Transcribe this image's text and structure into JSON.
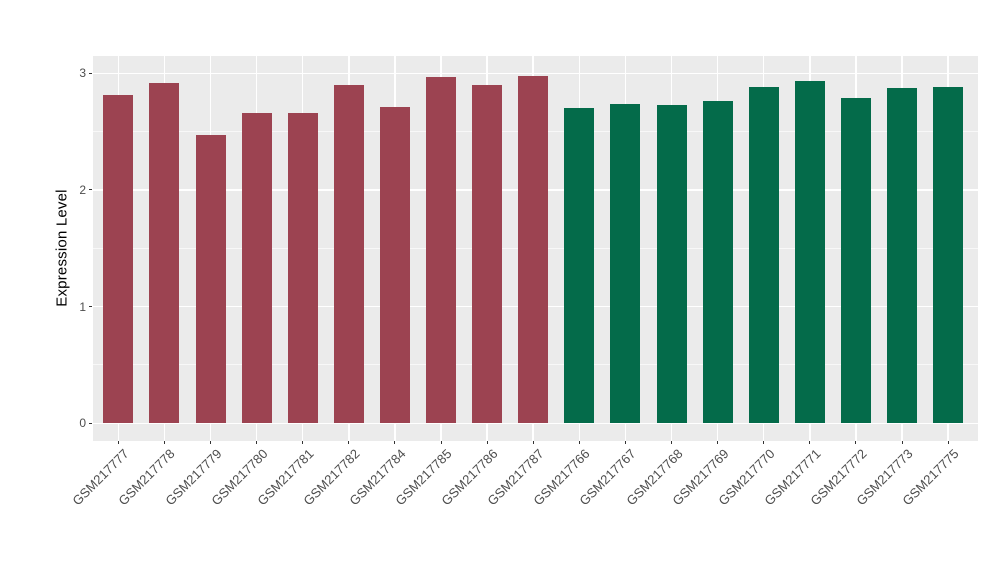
{
  "figure": {
    "background": "#ffffff",
    "panel_background": "#ebebeb",
    "grid_color": "#ffffff",
    "axis_text_color": "#4d4d4d",
    "tick_mark_color": "#333333"
  },
  "chart_data": {
    "type": "bar",
    "title": "",
    "xlabel": "",
    "ylabel": "Expression Level",
    "ylim": [
      0,
      3.17
    ],
    "y_ticks": [
      0,
      1,
      2,
      3
    ],
    "y_minor_ticks": [
      0.5,
      1.5,
      2.5
    ],
    "grid": "major and minor horizontal white lines, major vertical white lines, gray panel",
    "legend_position": "none",
    "categories": [
      "GSM217777",
      "GSM217778",
      "GSM217779",
      "GSM217780",
      "GSM217781",
      "GSM217782",
      "GSM217784",
      "GSM217785",
      "GSM217786",
      "GSM217787",
      "GSM217766",
      "GSM217767",
      "GSM217768",
      "GSM217769",
      "GSM217770",
      "GSM217771",
      "GSM217772",
      "GSM217773",
      "GSM217775"
    ],
    "groups": [
      {
        "name": "dark-red-group",
        "color": "#9c4351",
        "bars": [
          {
            "label": "GSM217777",
            "value": 2.81
          },
          {
            "label": "GSM217778",
            "value": 2.92
          },
          {
            "label": "GSM217779",
            "value": 2.47
          },
          {
            "label": "GSM217780",
            "value": 2.66
          },
          {
            "label": "GSM217781",
            "value": 2.66
          },
          {
            "label": "GSM217782",
            "value": 2.9
          },
          {
            "label": "GSM217784",
            "value": 2.71
          },
          {
            "label": "GSM217785",
            "value": 2.97
          },
          {
            "label": "GSM217786",
            "value": 2.9
          },
          {
            "label": "GSM217787",
            "value": 2.98
          }
        ]
      },
      {
        "name": "dark-green-group",
        "color": "#046b4a",
        "bars": [
          {
            "label": "GSM217766",
            "value": 2.7
          },
          {
            "label": "GSM217767",
            "value": 2.74
          },
          {
            "label": "GSM217768",
            "value": 2.73
          },
          {
            "label": "GSM217769",
            "value": 2.76
          },
          {
            "label": "GSM217770",
            "value": 2.88
          },
          {
            "label": "GSM217771",
            "value": 2.93
          },
          {
            "label": "GSM217772",
            "value": 2.79
          },
          {
            "label": "GSM217773",
            "value": 2.87
          },
          {
            "label": "GSM217775",
            "value": 2.88
          }
        ]
      }
    ]
  }
}
